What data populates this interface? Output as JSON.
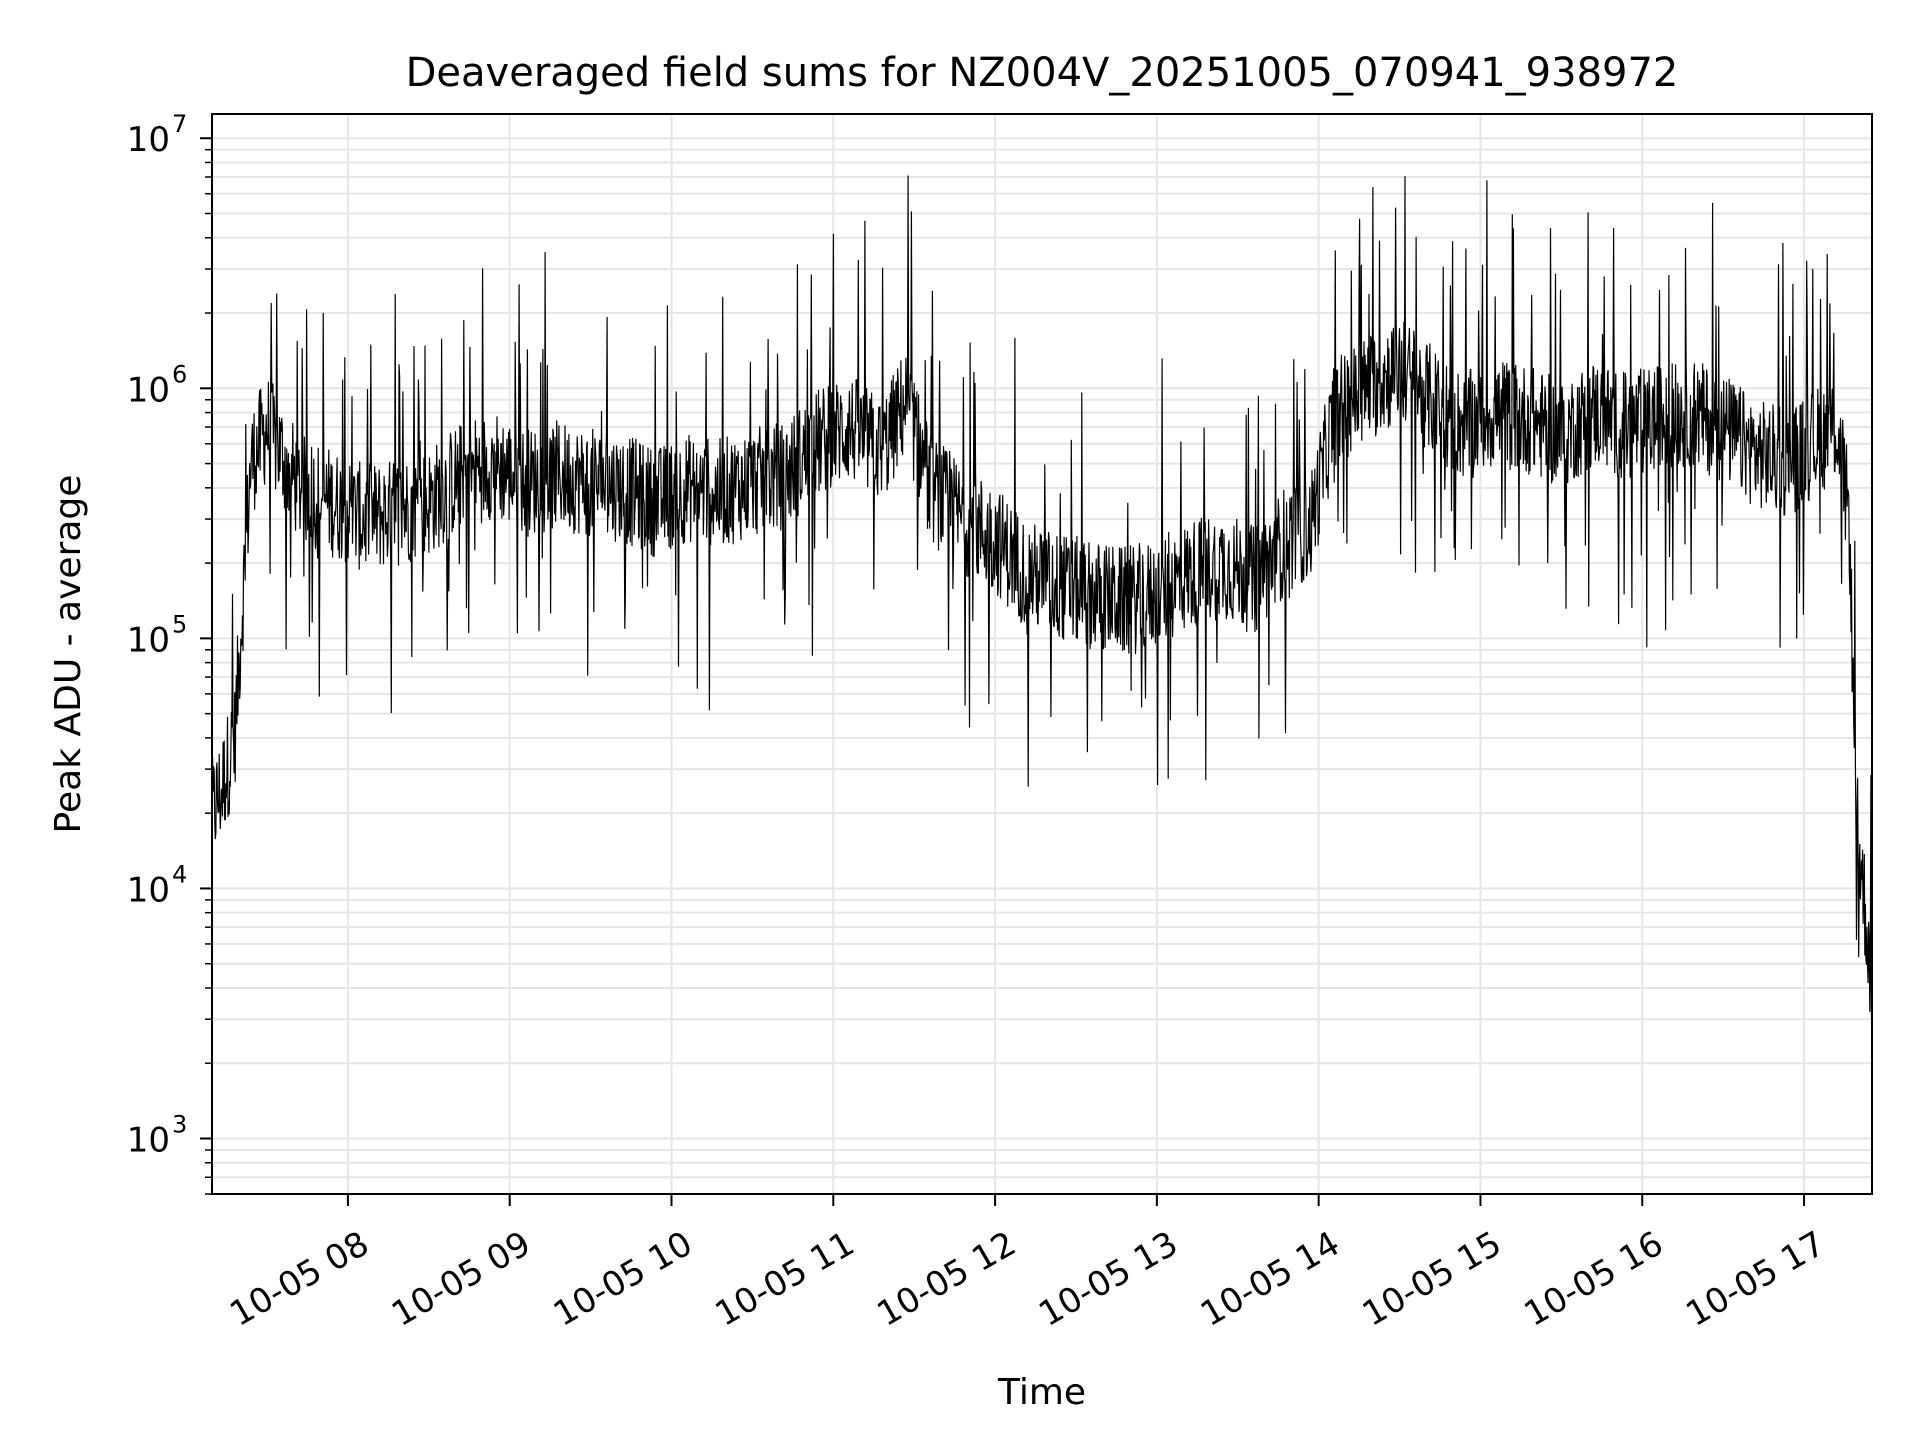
{
  "chart_data": {
    "type": "line",
    "title": "Deaveraged field sums for NZ004V_20251005_070941_938972",
    "xlabel": "Time",
    "ylabel": "Peak ADU - average",
    "yscale": "log",
    "ylim": [
      600,
      12500000
    ],
    "xlim": [
      7.16,
      17.42
    ],
    "x_tick_values": [
      8,
      9,
      10,
      11,
      12,
      13,
      14,
      15,
      16,
      17
    ],
    "x_tick_labels": [
      "10-05 08",
      "10-05 09",
      "10-05 10",
      "10-05 11",
      "10-05 12",
      "10-05 13",
      "10-05 14",
      "10-05 15",
      "10-05 16",
      "10-05 17"
    ],
    "y_tick_values": [
      1000,
      10000,
      100000,
      1000000,
      10000000
    ],
    "y_tick_base": [
      "10",
      "10",
      "10",
      "10",
      "10"
    ],
    "y_tick_exp": [
      "3",
      "4",
      "5",
      "6",
      "7"
    ],
    "grid": true,
    "line_color": "#000000",
    "grid_color": "#e6e6e6",
    "series": [
      {
        "name": "Peak ADU - average",
        "x": [
          7.16,
          7.22,
          7.3,
          7.4,
          7.5,
          7.7,
          7.9,
          8.1,
          8.3,
          8.5,
          8.7,
          8.9,
          9.1,
          9.3,
          9.5,
          9.7,
          9.9,
          10.1,
          10.3,
          10.5,
          10.7,
          10.9,
          11.1,
          11.3,
          11.45,
          11.6,
          11.8,
          12.0,
          12.2,
          12.4,
          12.6,
          12.8,
          13.0,
          13.2,
          13.4,
          13.6,
          13.8,
          13.95,
          14.1,
          14.3,
          14.5,
          14.7,
          14.9,
          15.1,
          15.3,
          15.5,
          15.7,
          15.9,
          16.1,
          16.3,
          16.5,
          16.7,
          16.9,
          17.05,
          17.2,
          17.28,
          17.32,
          17.38,
          17.42
        ],
        "y": [
          20000,
          25000,
          40000,
          500000,
          700000,
          400000,
          350000,
          300000,
          320000,
          350000,
          450000,
          500000,
          420000,
          450000,
          420000,
          400000,
          350000,
          400000,
          380000,
          420000,
          450000,
          600000,
          700000,
          550000,
          900000,
          400000,
          300000,
          250000,
          180000,
          160000,
          150000,
          140000,
          150000,
          180000,
          200000,
          170000,
          250000,
          280000,
          800000,
          1000000,
          1200000,
          900000,
          700000,
          800000,
          750000,
          650000,
          800000,
          700000,
          750000,
          800000,
          700000,
          550000,
          500000,
          600000,
          700000,
          300000,
          20000,
          8000,
          4000
        ]
      }
    ]
  }
}
